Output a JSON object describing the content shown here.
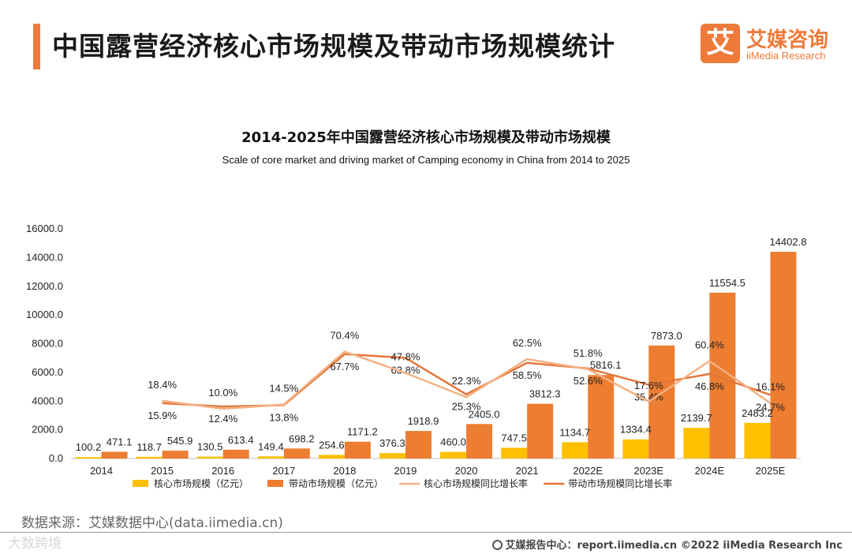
{
  "header": {
    "title": "中国露营经济核心市场规模及带动市场规模统计",
    "logo_mark": "艾",
    "logo_cn": "艾媒咨询",
    "logo_en": "iiMedia Research"
  },
  "colors": {
    "accent": "#ee7a3a",
    "core_bar": "#ffc000",
    "driving_bar": "#ed7d31",
    "core_line": "#f4b183",
    "driving_line": "#e4763a"
  },
  "chart_data": {
    "type": "bar",
    "title": "2014-2025年中国露营经济核心市场规模及带动市场规模",
    "subtitle": "Scale of core market and driving market of Camping economy in China from 2014 to 2025",
    "categories": [
      "2014",
      "2015",
      "2016",
      "2017",
      "2018",
      "2019",
      "2020",
      "2021",
      "2022E",
      "2023E",
      "2024E",
      "2025E"
    ],
    "ylim": [
      0,
      16000
    ],
    "yticks": [
      "0.0",
      "2000.0",
      "4000.0",
      "6000.0",
      "8000.0",
      "10000.0",
      "12000.0",
      "14000.0",
      "16000.0"
    ],
    "grid": false,
    "legend_position": "bottom",
    "series": [
      {
        "name": "核心市场规模（亿元）",
        "kind": "bar",
        "color": "#ffc000",
        "values": [
          100.2,
          118.7,
          130.5,
          149.4,
          254.6,
          376.3,
          460.0,
          747.5,
          1134.7,
          1334.4,
          2139.7,
          2483.2
        ],
        "labels": [
          "100.2",
          "118.7",
          "130.5",
          "149.4",
          "254.6",
          "376.3",
          "460.0",
          "747.5",
          "1134.7",
          "1334.4",
          "2139.7",
          "2483.2"
        ]
      },
      {
        "name": "带动市场规模（亿元）",
        "kind": "bar",
        "color": "#ed7d31",
        "values": [
          471.1,
          545.9,
          613.4,
          698.2,
          1171.2,
          1918.9,
          2405.0,
          3812.3,
          5816.1,
          7873.0,
          11554.5,
          14402.8
        ],
        "labels": [
          "471.1",
          "545.9",
          "613.4",
          "698.2",
          "1171.2",
          "1918.9",
          "2405.0",
          "3812.3",
          "5816.1",
          "7873.0",
          "11554.5",
          "14402.8"
        ]
      },
      {
        "name": "核心市场规模同比增长率",
        "kind": "line",
        "color": "#f4b183",
        "values": [
          null,
          18.4,
          10.0,
          14.5,
          70.4,
          47.8,
          22.3,
          62.5,
          51.8,
          17.6,
          60.4,
          16.1
        ],
        "labels": [
          "",
          "18.4%",
          "10.0%",
          "14.5%",
          "70.4%",
          "47.8%",
          "22.3%",
          "62.5%",
          "51.8%",
          "17.6%",
          "60.4%",
          "16.1%"
        ]
      },
      {
        "name": "带动市场规模同比增长率",
        "kind": "line",
        "color": "#e4763a",
        "values": [
          null,
          15.9,
          12.4,
          13.8,
          67.7,
          63.8,
          25.3,
          58.5,
          52.6,
          35.4,
          46.8,
          24.7
        ],
        "labels": [
          "",
          "15.9%",
          "12.4%",
          "13.8%",
          "67.7%",
          "63.8%",
          "25.3%",
          "58.5%",
          "52.6%",
          "35.4%",
          "46.8%",
          "24.7%"
        ]
      }
    ]
  },
  "source": "数据来源：艾媒数据中心(data.iimedia.cn)",
  "watermark": "大数跨境",
  "footer": "艾媒报告中心：report.iimedia.cn   ©2022  iiMedia Research  Inc"
}
